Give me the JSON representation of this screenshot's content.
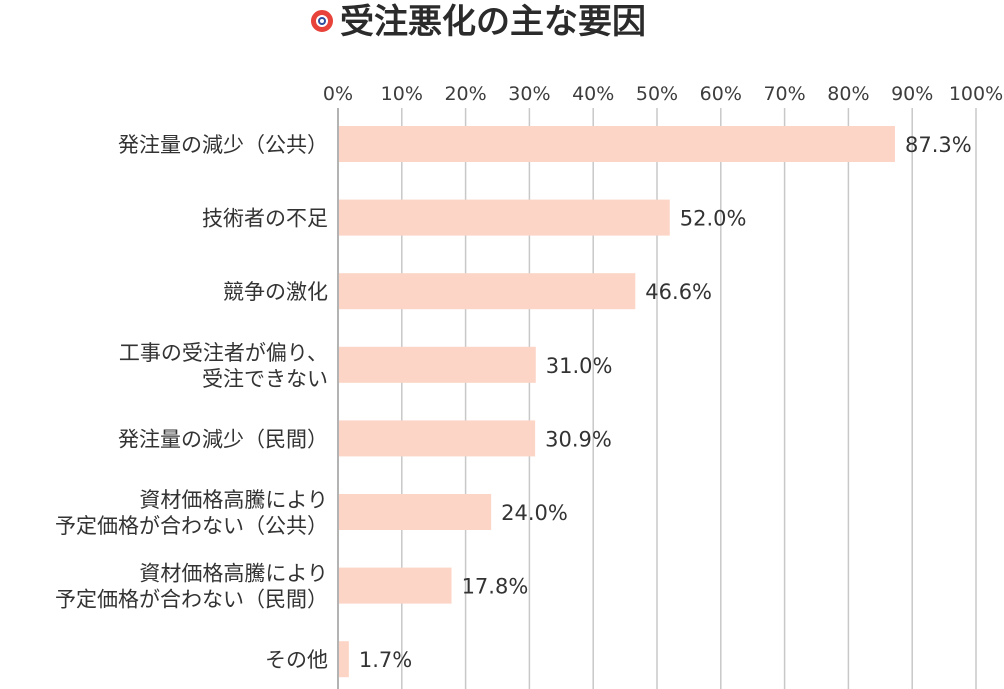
{
  "colors": {
    "bar": "#fdd5c6",
    "gridline": "#c8c8c8",
    "axis": "#9a9a9a",
    "title_ring_outer": "#e8433a",
    "title_ring_inner": "#2f4e9e"
  },
  "icons": {
    "title_marker": "ring-icon"
  },
  "chart_data": {
    "type": "bar",
    "orientation": "horizontal",
    "title": "受注悪化の主な要因",
    "xlabel": "",
    "ylabel": "",
    "xlim": [
      0,
      100
    ],
    "x_ticks": [
      "0%",
      "10%",
      "20%",
      "30%",
      "40%",
      "50%",
      "60%",
      "70%",
      "80%",
      "90%",
      "100%"
    ],
    "tick_position": "top",
    "grid": true,
    "legend": "none",
    "categories": [
      [
        "発注量の減少（公共）"
      ],
      [
        "技術者の不足"
      ],
      [
        "競争の激化"
      ],
      [
        "工事の受注者が偏り、",
        "受注できない"
      ],
      [
        "発注量の減少（民間）"
      ],
      [
        "資材価格高騰により",
        "予定価格が合わない（公共）"
      ],
      [
        "資材価格高騰により",
        "予定価格が合わない（民間）"
      ],
      [
        "その他"
      ]
    ],
    "values": [
      87.3,
      52.0,
      46.6,
      31.0,
      30.9,
      24.0,
      17.8,
      1.7
    ],
    "value_labels": [
      "87.3%",
      "52.0%",
      "46.6%",
      "31.0%",
      "30.9%",
      "24.0%",
      "17.8%",
      "1.7%"
    ]
  }
}
